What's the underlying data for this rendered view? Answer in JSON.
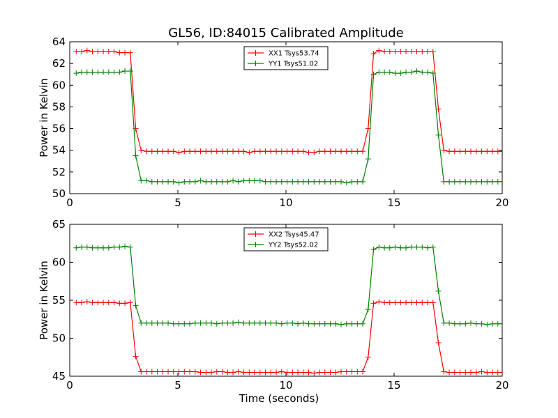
{
  "title": "GL56, ID:84015 Calibrated Amplitude",
  "chart_data": [
    {
      "type": "line",
      "ylabel": "Power in Kelvin",
      "xlabel": "",
      "xlim": [
        0,
        20
      ],
      "ylim": [
        50,
        64
      ],
      "xticks": [
        0,
        5,
        10,
        15,
        20
      ],
      "yticks": [
        50,
        52,
        54,
        56,
        58,
        60,
        62,
        64
      ],
      "legend_position": "top-center",
      "x": [
        0.3,
        0.55,
        0.8,
        1.05,
        1.3,
        1.55,
        1.8,
        2.05,
        2.3,
        2.55,
        2.8,
        3.05,
        3.3,
        3.55,
        3.8,
        4.05,
        4.3,
        4.55,
        4.8,
        5.05,
        5.3,
        5.55,
        5.8,
        6.05,
        6.3,
        6.55,
        6.8,
        7.05,
        7.3,
        7.55,
        7.8,
        8.05,
        8.3,
        8.55,
        8.8,
        9.05,
        9.3,
        9.55,
        9.8,
        10.05,
        10.3,
        10.55,
        10.8,
        11.05,
        11.3,
        11.55,
        11.8,
        12.05,
        12.3,
        12.55,
        12.8,
        13.05,
        13.3,
        13.55,
        13.8,
        14.05,
        14.3,
        14.55,
        14.8,
        15.05,
        15.3,
        15.55,
        15.8,
        16.05,
        16.3,
        16.55,
        16.8,
        17.05,
        17.3,
        17.55,
        17.8,
        18.05,
        18.3,
        18.55,
        18.8,
        19.05,
        19.3,
        19.55,
        19.8,
        20.05
      ],
      "series": [
        {
          "name": "XX1 Tsys53.74",
          "color": "#ff0000",
          "values": [
            63.1,
            63.1,
            63.2,
            63.1,
            63.1,
            63.1,
            63.1,
            63.1,
            63.0,
            63.0,
            63.0,
            56.0,
            54.0,
            53.9,
            53.9,
            53.9,
            53.9,
            53.9,
            53.9,
            53.8,
            53.9,
            53.9,
            53.9,
            53.9,
            53.9,
            53.9,
            53.9,
            53.9,
            53.9,
            53.9,
            53.9,
            53.9,
            53.8,
            53.9,
            53.9,
            53.9,
            53.9,
            53.9,
            53.9,
            53.9,
            53.9,
            53.9,
            53.9,
            53.8,
            53.8,
            53.9,
            53.9,
            53.9,
            53.9,
            53.9,
            53.9,
            53.9,
            53.9,
            53.9,
            56.0,
            62.9,
            63.2,
            63.1,
            63.1,
            63.1,
            63.1,
            63.1,
            63.1,
            63.1,
            63.1,
            63.1,
            63.1,
            57.8,
            54.0,
            53.9,
            53.9,
            53.9,
            53.9,
            53.9,
            53.9,
            53.9,
            53.9,
            53.9,
            53.9,
            53.9
          ]
        },
        {
          "name": "YY1 Tsys51.02",
          "color": "#008000",
          "values": [
            61.1,
            61.2,
            61.2,
            61.2,
            61.2,
            61.2,
            61.2,
            61.2,
            61.2,
            61.3,
            61.3,
            53.5,
            51.2,
            51.2,
            51.1,
            51.1,
            51.1,
            51.1,
            51.1,
            51.0,
            51.1,
            51.1,
            51.1,
            51.2,
            51.1,
            51.1,
            51.1,
            51.1,
            51.1,
            51.2,
            51.1,
            51.2,
            51.2,
            51.2,
            51.2,
            51.1,
            51.1,
            51.1,
            51.1,
            51.1,
            51.1,
            51.1,
            51.1,
            51.1,
            51.1,
            51.1,
            51.1,
            51.1,
            51.1,
            51.1,
            51.0,
            51.1,
            51.1,
            51.1,
            53.2,
            61.0,
            61.2,
            61.2,
            61.2,
            61.1,
            61.1,
            61.2,
            61.2,
            61.3,
            61.2,
            61.2,
            61.1,
            55.4,
            51.1,
            51.1,
            51.1,
            51.1,
            51.1,
            51.1,
            51.1,
            51.1,
            51.1,
            51.1,
            51.1,
            51.1
          ]
        }
      ]
    },
    {
      "type": "line",
      "ylabel": "Power in Kelvin",
      "xlabel": "Time (seconds)",
      "xlim": [
        0,
        20
      ],
      "ylim": [
        45,
        65
      ],
      "xticks": [
        0,
        5,
        10,
        15,
        20
      ],
      "yticks": [
        45,
        50,
        55,
        60,
        65
      ],
      "legend_position": "top-center",
      "x": [
        0.3,
        0.55,
        0.8,
        1.05,
        1.3,
        1.55,
        1.8,
        2.05,
        2.3,
        2.55,
        2.8,
        3.05,
        3.3,
        3.55,
        3.8,
        4.05,
        4.3,
        4.55,
        4.8,
        5.05,
        5.3,
        5.55,
        5.8,
        6.05,
        6.3,
        6.55,
        6.8,
        7.05,
        7.3,
        7.55,
        7.8,
        8.05,
        8.3,
        8.55,
        8.8,
        9.05,
        9.3,
        9.55,
        9.8,
        10.05,
        10.3,
        10.55,
        10.8,
        11.05,
        11.3,
        11.55,
        11.8,
        12.05,
        12.3,
        12.55,
        12.8,
        13.05,
        13.3,
        13.55,
        13.8,
        14.05,
        14.3,
        14.55,
        14.8,
        15.05,
        15.3,
        15.55,
        15.8,
        16.05,
        16.3,
        16.55,
        16.8,
        17.05,
        17.3,
        17.55,
        17.8,
        18.05,
        18.3,
        18.55,
        18.8,
        19.05,
        19.3,
        19.55,
        19.8,
        20.05
      ],
      "series": [
        {
          "name": "XX2 Tsys45.47",
          "color": "#ff0000",
          "values": [
            54.7,
            54.7,
            54.8,
            54.7,
            54.7,
            54.7,
            54.7,
            54.7,
            54.6,
            54.6,
            54.7,
            47.6,
            45.6,
            45.6,
            45.6,
            45.6,
            45.6,
            45.6,
            45.6,
            45.6,
            45.6,
            45.6,
            45.6,
            45.5,
            45.5,
            45.5,
            45.6,
            45.6,
            45.5,
            45.5,
            45.6,
            45.5,
            45.5,
            45.5,
            45.5,
            45.5,
            45.5,
            45.5,
            45.6,
            45.5,
            45.5,
            45.5,
            45.5,
            45.5,
            45.4,
            45.5,
            45.5,
            45.5,
            45.5,
            45.6,
            45.6,
            45.6,
            45.6,
            45.6,
            47.5,
            54.6,
            54.8,
            54.7,
            54.7,
            54.7,
            54.7,
            54.7,
            54.7,
            54.7,
            54.7,
            54.7,
            54.7,
            49.4,
            45.6,
            45.5,
            45.5,
            45.5,
            45.5,
            45.5,
            45.5,
            45.6,
            45.5,
            45.5,
            45.5,
            45.5
          ]
        },
        {
          "name": "YY2 Tsys52.02",
          "color": "#008000",
          "values": [
            61.9,
            62.0,
            62.0,
            61.9,
            61.9,
            61.9,
            61.9,
            62.0,
            62.0,
            62.1,
            62.0,
            54.3,
            52.0,
            52.0,
            52.0,
            52.0,
            52.0,
            52.0,
            51.9,
            51.9,
            51.9,
            51.9,
            52.0,
            52.0,
            52.0,
            52.0,
            51.9,
            52.0,
            52.0,
            52.0,
            52.1,
            52.0,
            52.0,
            52.0,
            52.0,
            52.0,
            52.0,
            52.0,
            51.9,
            52.0,
            52.0,
            51.9,
            52.0,
            51.9,
            51.9,
            51.9,
            51.9,
            51.9,
            51.9,
            51.8,
            51.9,
            51.9,
            51.9,
            51.9,
            53.8,
            61.7,
            62.0,
            61.9,
            61.9,
            62.0,
            61.9,
            61.9,
            62.0,
            62.0,
            62.0,
            61.9,
            62.0,
            56.2,
            52.0,
            52.0,
            51.9,
            51.9,
            51.9,
            52.0,
            51.9,
            51.9,
            51.8,
            51.9,
            51.9,
            51.9
          ]
        }
      ]
    }
  ]
}
